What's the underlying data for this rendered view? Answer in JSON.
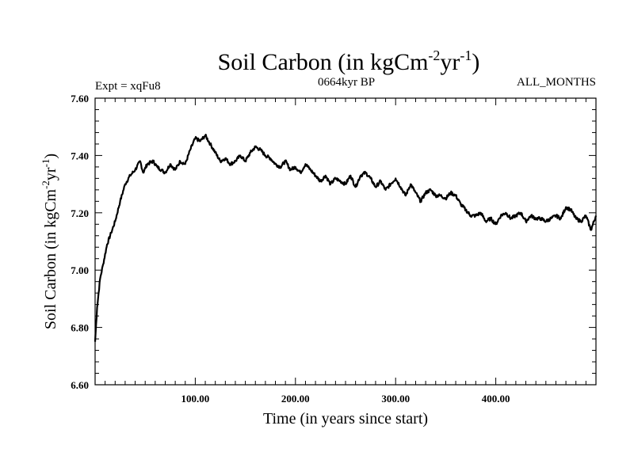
{
  "chart_data": {
    "type": "line",
    "title_main": "Soil Carbon (in kgCm",
    "title_exp1": "-2",
    "title_mid": "yr",
    "title_exp2": "-1",
    "title_end": ")",
    "expt_label": "Expt = xqFu8",
    "period_label": "0664kyr BP",
    "months_label": "ALL_MONTHS",
    "xlabel": "Time (in years since start)",
    "ylabel_main": "Soil Carbon (in kgCm",
    "ylabel_exp1": "-2",
    "ylabel_mid": "yr",
    "ylabel_exp2": "-1",
    "ylabel_end": ")",
    "xlim": [
      0,
      500
    ],
    "ylim": [
      6.6,
      7.6
    ],
    "x_ticks": [
      100,
      200,
      300,
      400
    ],
    "x_tick_labels": [
      "100.00",
      "200.00",
      "300.00",
      "400.00"
    ],
    "y_ticks": [
      6.6,
      6.8,
      7.0,
      7.2,
      7.4,
      7.6
    ],
    "y_tick_labels": [
      "6.60",
      "6.80",
      "7.00",
      "7.20",
      "7.40",
      "7.60"
    ],
    "series": [
      {
        "name": "Soil Carbon",
        "x": [
          0,
          2,
          5,
          8,
          12,
          16,
          20,
          25,
          30,
          35,
          40,
          45,
          48,
          52,
          58,
          62,
          66,
          70,
          75,
          80,
          85,
          90,
          95,
          100,
          105,
          110,
          115,
          120,
          125,
          130,
          135,
          140,
          145,
          150,
          155,
          160,
          165,
          170,
          175,
          180,
          185,
          190,
          195,
          200,
          205,
          210,
          215,
          220,
          225,
          230,
          235,
          240,
          245,
          250,
          255,
          260,
          265,
          270,
          275,
          280,
          285,
          290,
          295,
          300,
          305,
          310,
          315,
          320,
          325,
          330,
          335,
          340,
          345,
          350,
          355,
          360,
          365,
          370,
          375,
          380,
          385,
          390,
          395,
          400,
          405,
          410,
          415,
          420,
          425,
          430,
          435,
          440,
          445,
          450,
          455,
          460,
          465,
          470,
          475,
          480,
          485,
          490,
          495,
          500
        ],
        "values": [
          6.75,
          6.87,
          6.97,
          7.02,
          7.09,
          7.13,
          7.17,
          7.24,
          7.3,
          7.33,
          7.35,
          7.38,
          7.34,
          7.37,
          7.38,
          7.36,
          7.35,
          7.34,
          7.37,
          7.35,
          7.38,
          7.37,
          7.42,
          7.46,
          7.45,
          7.47,
          7.44,
          7.41,
          7.38,
          7.39,
          7.37,
          7.38,
          7.4,
          7.38,
          7.41,
          7.43,
          7.42,
          7.4,
          7.39,
          7.37,
          7.36,
          7.38,
          7.35,
          7.36,
          7.34,
          7.37,
          7.35,
          7.33,
          7.31,
          7.33,
          7.3,
          7.32,
          7.31,
          7.3,
          7.33,
          7.29,
          7.33,
          7.34,
          7.32,
          7.29,
          7.31,
          7.28,
          7.3,
          7.32,
          7.29,
          7.26,
          7.3,
          7.27,
          7.24,
          7.27,
          7.28,
          7.26,
          7.26,
          7.25,
          7.27,
          7.26,
          7.23,
          7.21,
          7.19,
          7.19,
          7.2,
          7.17,
          7.18,
          7.16,
          7.19,
          7.2,
          7.18,
          7.19,
          7.2,
          7.17,
          7.19,
          7.18,
          7.18,
          7.17,
          7.18,
          7.19,
          7.18,
          7.22,
          7.21,
          7.18,
          7.17,
          7.19,
          7.14,
          7.19
        ]
      }
    ]
  }
}
